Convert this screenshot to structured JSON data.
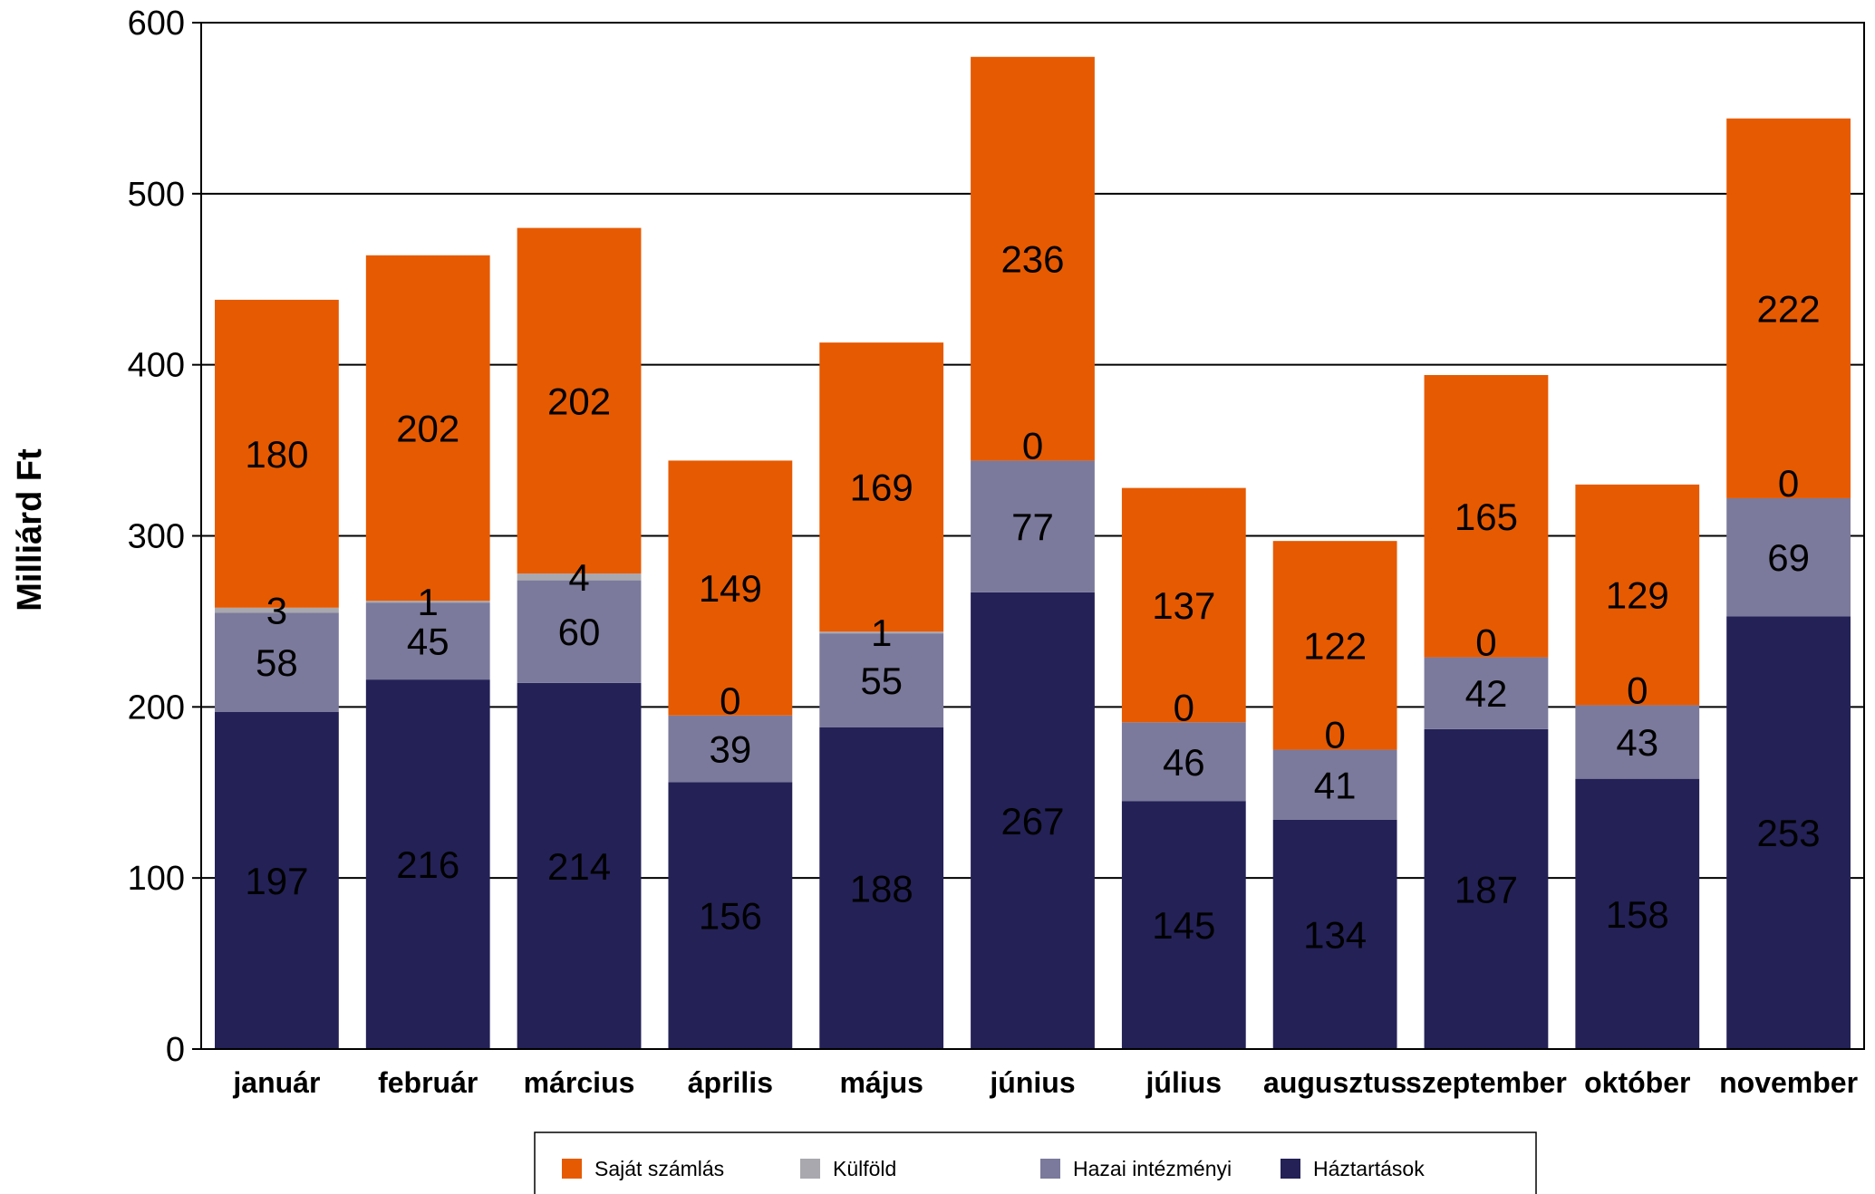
{
  "chart_data": {
    "type": "bar",
    "stacked": true,
    "ylabel": "Milliárd Ft",
    "xlabel": "",
    "ylim": [
      0,
      600
    ],
    "yticks": [
      0,
      100,
      200,
      300,
      400,
      500,
      600
    ],
    "grid": true,
    "legend_position": "bottom",
    "categories": [
      "január",
      "február",
      "március",
      "április",
      "május",
      "június",
      "július",
      "augusztus",
      "szeptember",
      "október",
      "november"
    ],
    "series": [
      {
        "name": "Háztartások",
        "color": "#232156",
        "values": [
          197,
          216,
          214,
          156,
          188,
          267,
          145,
          134,
          187,
          158,
          253
        ]
      },
      {
        "name": "Hazai intézményi",
        "color": "#7b7a9c",
        "values": [
          58,
          45,
          60,
          39,
          55,
          77,
          46,
          41,
          42,
          43,
          69
        ]
      },
      {
        "name": "Külföld",
        "color": "#a8a8ae",
        "values": [
          3,
          1,
          4,
          0,
          1,
          0,
          0,
          0,
          0,
          0,
          0
        ]
      },
      {
        "name": "Saját számlás",
        "color": "#e65a02",
        "values": [
          180,
          202,
          202,
          149,
          169,
          236,
          137,
          122,
          165,
          129,
          222
        ]
      }
    ],
    "legend_order": [
      "Saját számlás",
      "Külföld",
      "Hazai intézményi",
      "Háztartások"
    ]
  }
}
